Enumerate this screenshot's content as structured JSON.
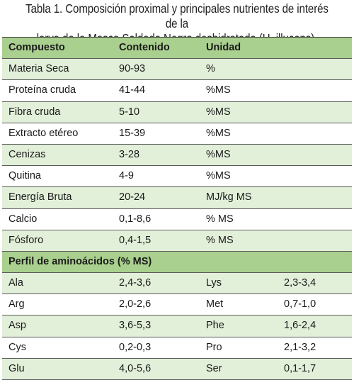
{
  "caption": {
    "line1": "Tabla 1. Composición proximal y principales nutrientes de interés de la",
    "line2": "larva de la Mosca Soldado Negro deshidratada (H. illucens)."
  },
  "colors": {
    "dark_green": "#a9d08e",
    "light_green": "#e2efd9",
    "text": "#1a1a1a"
  },
  "table": {
    "headers": [
      "Compuesto",
      "Contenido",
      "Unidad"
    ],
    "rows": [
      [
        "Materia Seca",
        "90-93",
        "%"
      ],
      [
        "Proteína cruda",
        "41-44",
        "%MS"
      ],
      [
        "Fibra cruda",
        "5-10",
        "%MS"
      ],
      [
        "Extracto etéreo",
        "15-39",
        "%MS"
      ],
      [
        "Cenizas",
        "3-28",
        "%MS"
      ],
      [
        "Quitina",
        "4-9",
        "%MS"
      ],
      [
        "Energía Bruta",
        "20-24",
        "MJ/kg MS"
      ],
      [
        "Calcio",
        "0,1-8,6",
        "% MS"
      ],
      [
        "Fósforo",
        "0,4-1,5",
        "% MS"
      ]
    ],
    "amino_header": "Perfil de aminoácidos (% MS)",
    "amino_rows": [
      [
        "Ala",
        "2,4-3,6",
        "Lys",
        "2,3-3,4"
      ],
      [
        "Arg",
        "2,0-2,6",
        "Met",
        "0,7-1,0"
      ],
      [
        "Asp",
        "3,6-5,3",
        "Phe",
        "1,6-2,4"
      ],
      [
        "Cys",
        "0,2-0,3",
        "Pro",
        "2,1-3,2"
      ],
      [
        "Glu",
        "4,0-5,6",
        "Ser",
        "0,1-1,7"
      ]
    ]
  }
}
